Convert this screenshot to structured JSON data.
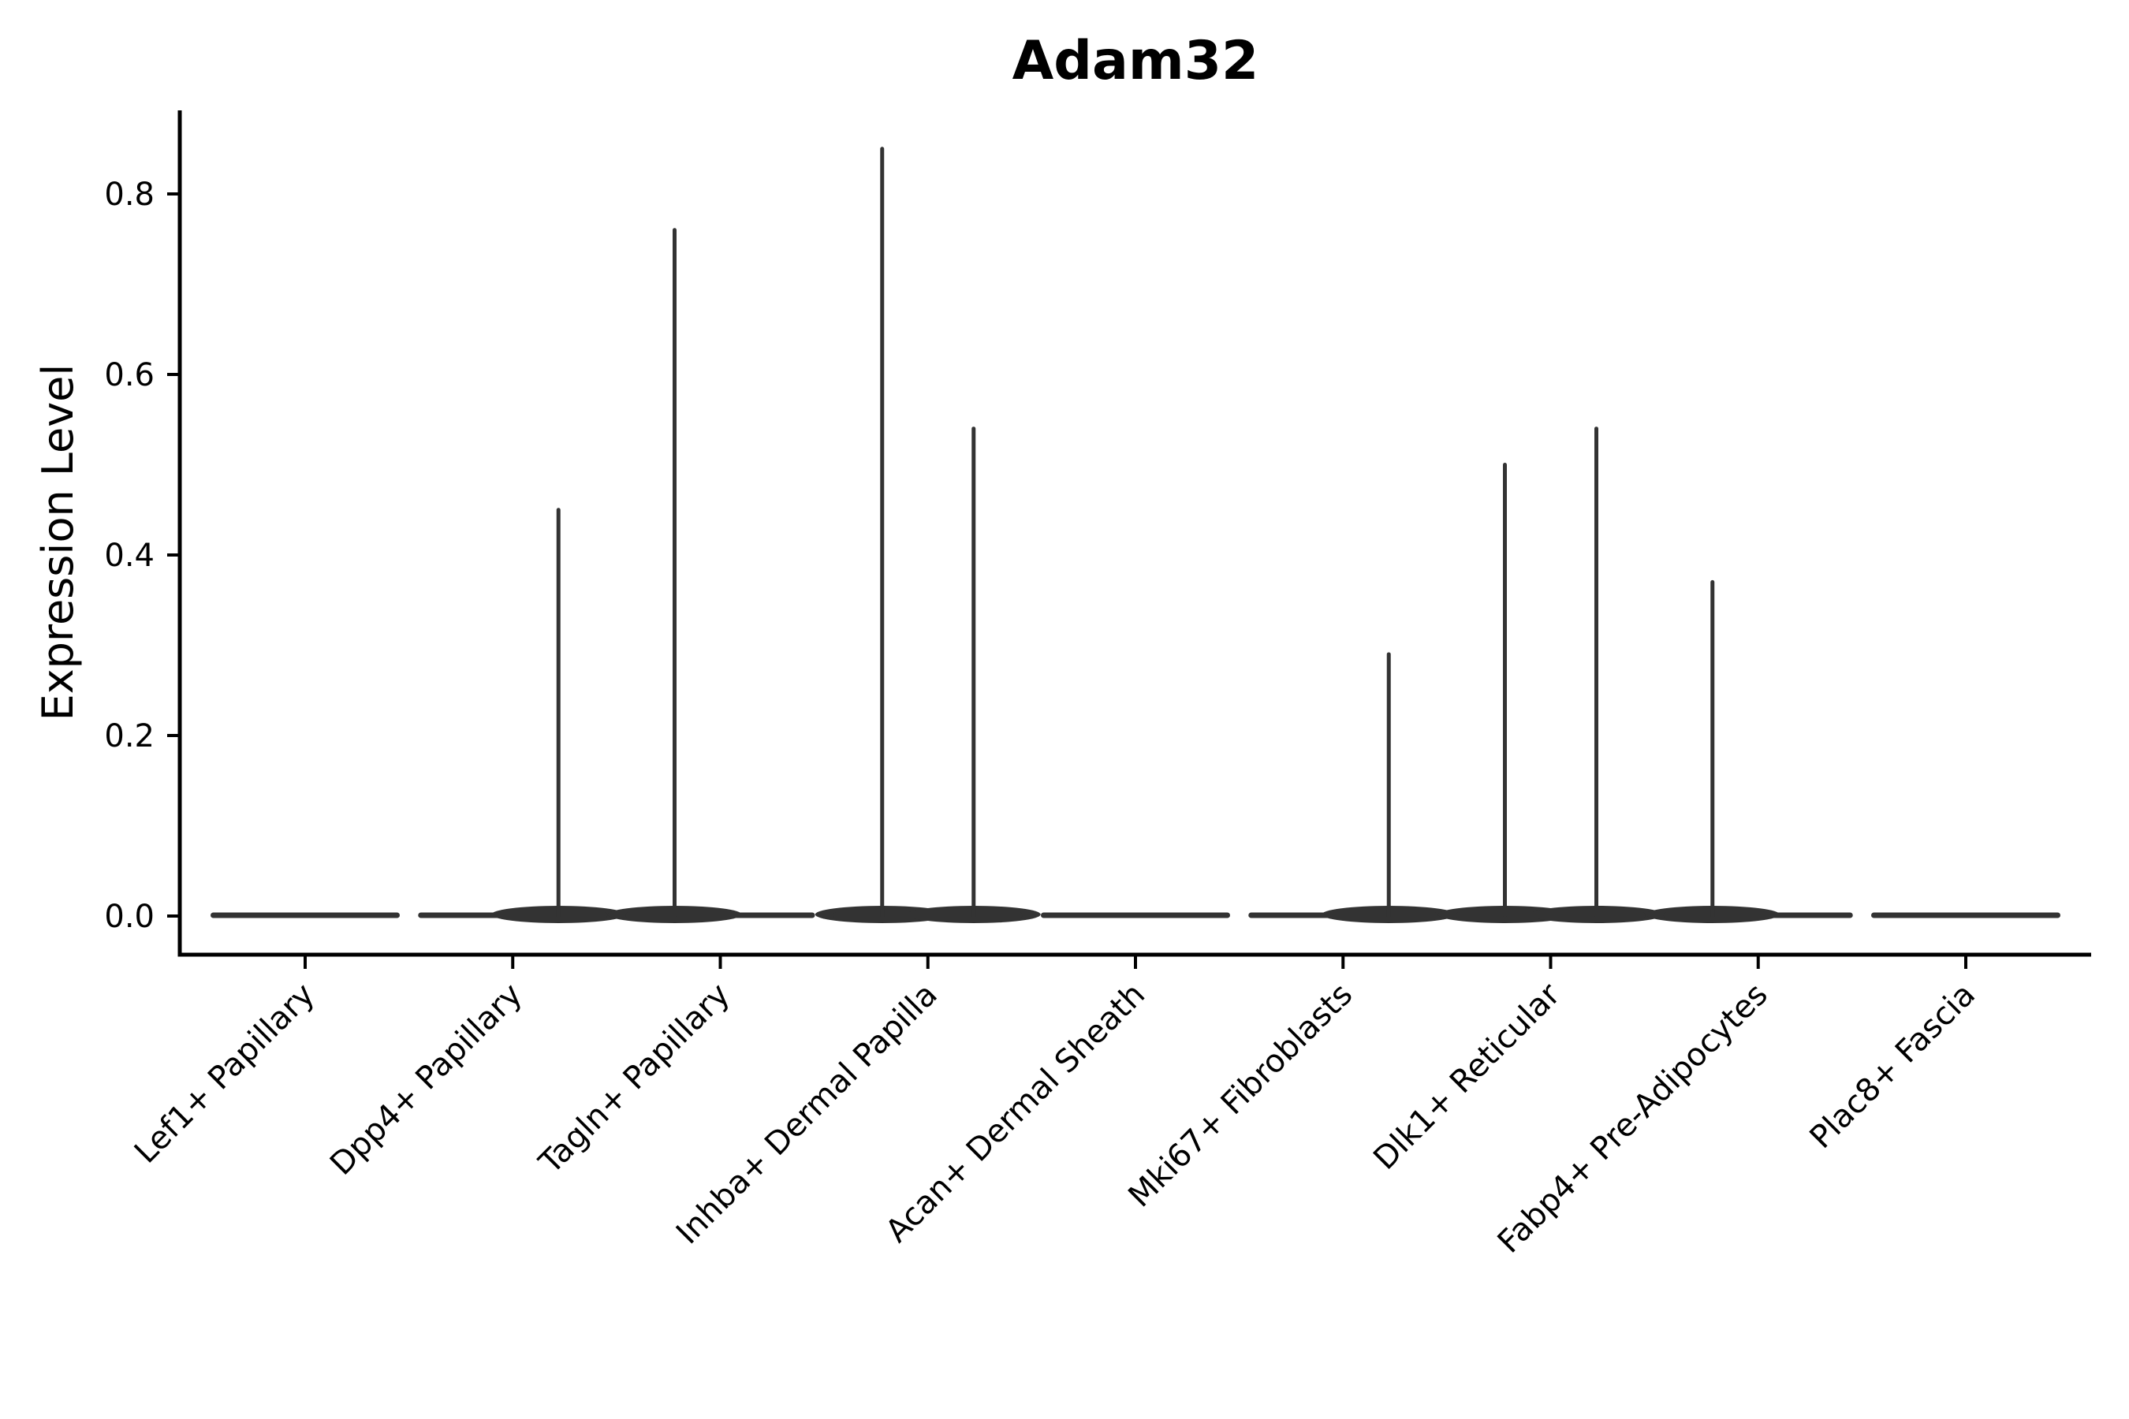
{
  "title": "Adam32",
  "ylabel": "Expression Level",
  "chart_data": {
    "type": "violin",
    "title": "Adam32",
    "xlabel": "",
    "ylabel": "Expression Level",
    "ylim": [
      -0.0425,
      0.8925
    ],
    "yticks": [
      0.0,
      0.2,
      0.4,
      0.6,
      0.8
    ],
    "ytick_labels": [
      "0.0",
      "0.2",
      "0.4",
      "0.6",
      "0.8"
    ],
    "grid": false,
    "legend": "none",
    "categories": [
      "Lef1+ Papillary",
      "Dpp4+ Papillary",
      "Tagln+ Papillary",
      "Inhba+ Dermal Papilla",
      "Acan+ Dermal Sheath",
      "Mki67+ Fibroblasts",
      "Dlk1+ Reticular",
      "Fabp4+ Pre-Adipocytes",
      "Plac8+ Fascia"
    ],
    "violins": [
      {
        "category": "Lef1+ Papillary",
        "baseline_value": 0.0,
        "spikes": []
      },
      {
        "category": "Dpp4+ Papillary",
        "baseline_value": 0.0,
        "spikes": [
          {
            "side": "right",
            "max": 0.45
          }
        ]
      },
      {
        "category": "Tagln+ Papillary",
        "baseline_value": 0.0,
        "spikes": [
          {
            "side": "left",
            "max": 0.76
          }
        ]
      },
      {
        "category": "Inhba+ Dermal Papilla",
        "baseline_value": 0.0,
        "spikes": [
          {
            "side": "left",
            "max": 0.85
          },
          {
            "side": "right",
            "max": 0.54
          }
        ]
      },
      {
        "category": "Acan+ Dermal Sheath",
        "baseline_value": 0.0,
        "spikes": []
      },
      {
        "category": "Mki67+ Fibroblasts",
        "baseline_value": 0.0,
        "spikes": [
          {
            "side": "right",
            "max": 0.29
          }
        ]
      },
      {
        "category": "Dlk1+ Reticular",
        "baseline_value": 0.0,
        "spikes": [
          {
            "side": "left",
            "max": 0.5
          },
          {
            "side": "right",
            "max": 0.54
          }
        ]
      },
      {
        "category": "Fabp4+ Pre-Adipocytes",
        "baseline_value": 0.0,
        "spikes": [
          {
            "side": "left",
            "max": 0.37
          }
        ]
      },
      {
        "category": "Plac8+ Fascia",
        "baseline_value": 0.0,
        "spikes": []
      }
    ],
    "colors": {
      "violin": "#333333",
      "axis": "#000000",
      "text": "#000000",
      "background": "#ffffff"
    }
  }
}
